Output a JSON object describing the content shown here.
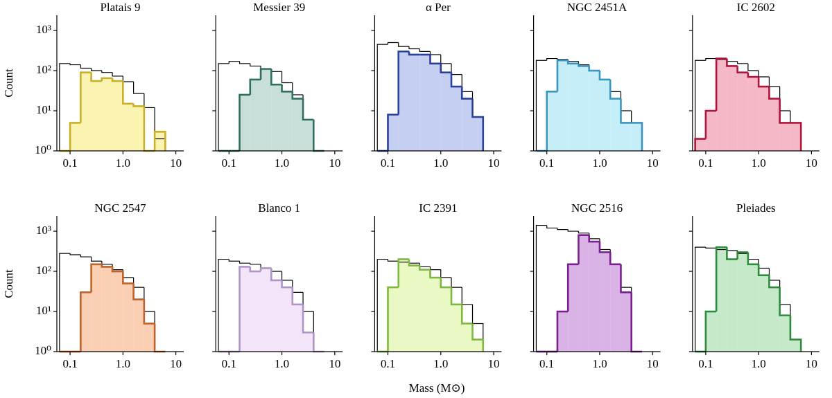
{
  "chart_data": [
    {
      "type": "histogram",
      "title": "Platais 9",
      "ylabel": "Count",
      "xscale": "log",
      "yscale": "log",
      "bins": [
        0.0631,
        0.1,
        0.1585,
        0.2512,
        0.3981,
        0.631,
        1.0,
        1.585,
        2.512,
        3.981,
        6.31
      ],
      "xlim": [
        0.0562,
        14.1
      ],
      "ylim": [
        1,
        2400
      ],
      "xticks": [
        0.1,
        {
          "value": 1,
          "label": "1.0"
        },
        10
      ],
      "yticks": [
        {
          "value": 1,
          "label": "10⁰"
        },
        {
          "value": 10,
          "label": "10¹"
        },
        {
          "value": 100,
          "label": "10²"
        },
        {
          "value": 1000,
          "label": "10³"
        }
      ],
      "series": [
        {
          "color": "#000000",
          "values": [
            150,
            140,
            115,
            100,
            90,
            73,
            53,
            27,
            12,
            2
          ]
        },
        {
          "color": "#c8b028",
          "fill": "#fbf3b0",
          "values": [
            0,
            5,
            90,
            55,
            65,
            55,
            15,
            13,
            1,
            3
          ]
        }
      ]
    },
    {
      "type": "histogram",
      "title": "Messier 39",
      "xscale": "log",
      "yscale": "log",
      "bins": [
        0.0631,
        0.1,
        0.1585,
        0.2512,
        0.3981,
        0.631,
        1.0,
        1.585,
        2.512,
        3.981,
        6.31
      ],
      "xlim": [
        0.0562,
        14.1
      ],
      "ylim": [
        1,
        2400
      ],
      "xticks": [
        0.1,
        {
          "value": 1,
          "label": "1.0"
        },
        10
      ],
      "yticks": [
        {
          "value": 1,
          "label": "10⁰"
        },
        {
          "value": 10,
          "label": "10¹"
        },
        {
          "value": 100,
          "label": "10²"
        },
        {
          "value": 1000,
          "label": "10³"
        }
      ],
      "series": [
        {
          "color": "#000000",
          "values": [
            150,
            170,
            150,
            130,
            110,
            95,
            50,
            25,
            6,
            0
          ]
        },
        {
          "color": "#2f6f60",
          "fill": "#c8ded9",
          "values": [
            0,
            0,
            25,
            60,
            110,
            45,
            30,
            20,
            6,
            0
          ]
        }
      ]
    },
    {
      "type": "histogram",
      "title": "α Per",
      "xscale": "log",
      "yscale": "log",
      "bins": [
        0.0631,
        0.1,
        0.1585,
        0.2512,
        0.3981,
        0.631,
        1.0,
        1.585,
        2.512,
        3.981,
        6.31
      ],
      "xlim": [
        0.0562,
        14.1
      ],
      "ylim": [
        1,
        2400
      ],
      "xticks": [
        0.1,
        {
          "value": 1,
          "label": "1.0"
        },
        10
      ],
      "yticks": [
        {
          "value": 1,
          "label": "10⁰"
        },
        {
          "value": 10,
          "label": "10¹"
        },
        {
          "value": 100,
          "label": "10²"
        },
        {
          "value": 1000,
          "label": "10³"
        }
      ],
      "series": [
        {
          "color": "#000000",
          "values": [
            450,
            500,
            400,
            350,
            300,
            250,
            150,
            80,
            30,
            7
          ]
        },
        {
          "color": "#2b3f9e",
          "fill": "#c5cff2",
          "values": [
            0,
            8,
            300,
            250,
            250,
            150,
            90,
            40,
            20,
            7
          ]
        }
      ]
    },
    {
      "type": "histogram",
      "title": "NGC 2451A",
      "xscale": "log",
      "yscale": "log",
      "bins": [
        0.0631,
        0.1,
        0.1585,
        0.2512,
        0.3981,
        0.631,
        1.0,
        1.585,
        2.512,
        3.981,
        6.31
      ],
      "xlim": [
        0.0562,
        14.1
      ],
      "ylim": [
        1,
        2400
      ],
      "xticks": [
        0.1,
        {
          "value": 1,
          "label": "1.0"
        },
        10
      ],
      "yticks": [
        {
          "value": 1,
          "label": "10⁰"
        },
        {
          "value": 10,
          "label": "10¹"
        },
        {
          "value": 100,
          "label": "10²"
        },
        {
          "value": 1000,
          "label": "10³"
        }
      ],
      "series": [
        {
          "color": "#000000",
          "values": [
            180,
            200,
            190,
            170,
            140,
            100,
            60,
            30,
            10,
            5
          ]
        },
        {
          "color": "#3a95c0",
          "fill": "#c5eef8",
          "values": [
            0,
            30,
            180,
            150,
            130,
            100,
            60,
            20,
            5,
            5
          ]
        }
      ]
    },
    {
      "type": "histogram",
      "title": "IC 2602",
      "xscale": "log",
      "yscale": "log",
      "bins": [
        0.0631,
        0.1,
        0.1585,
        0.2512,
        0.3981,
        0.631,
        1.0,
        1.585,
        2.512,
        3.981,
        6.31
      ],
      "xlim": [
        0.0562,
        14.1
      ],
      "ylim": [
        1,
        2400
      ],
      "xticks": [
        0.1,
        {
          "value": 1,
          "label": "1.0"
        },
        10
      ],
      "yticks": [
        {
          "value": 1,
          "label": "10⁰"
        },
        {
          "value": 10,
          "label": "10¹"
        },
        {
          "value": 100,
          "label": "10²"
        },
        {
          "value": 1000,
          "label": "10³"
        }
      ],
      "series": [
        {
          "color": "#000000",
          "values": [
            180,
            200,
            190,
            170,
            150,
            100,
            70,
            40,
            10,
            5
          ]
        },
        {
          "color": "#b0143a",
          "fill": "#f4b8c6",
          "values": [
            2,
            10,
            200,
            130,
            90,
            70,
            40,
            20,
            5,
            5
          ]
        }
      ]
    },
    {
      "type": "histogram",
      "title": "NGC 2547",
      "ylabel": "Count",
      "xscale": "log",
      "yscale": "log",
      "bins": [
        0.0631,
        0.1,
        0.1585,
        0.2512,
        0.3981,
        0.631,
        1.0,
        1.585,
        2.512,
        3.981,
        6.31
      ],
      "xlim": [
        0.0562,
        14.1
      ],
      "ylim": [
        1,
        2400
      ],
      "xticks": [
        0.1,
        {
          "value": 1,
          "label": "1.0"
        },
        10
      ],
      "yticks": [
        {
          "value": 1,
          "label": "10⁰"
        },
        {
          "value": 10,
          "label": "10¹"
        },
        {
          "value": 100,
          "label": "10²"
        },
        {
          "value": 1000,
          "label": "10³"
        }
      ],
      "series": [
        {
          "color": "#000000",
          "values": [
            280,
            260,
            230,
            180,
            150,
            110,
            70,
            40,
            10,
            1
          ]
        },
        {
          "color": "#c0622a",
          "fill": "#fbcfb4",
          "values": [
            0,
            0,
            30,
            150,
            130,
            100,
            50,
            20,
            5,
            1
          ]
        }
      ]
    },
    {
      "type": "histogram",
      "title": "Blanco 1",
      "xscale": "log",
      "yscale": "log",
      "bins": [
        0.0631,
        0.1,
        0.1585,
        0.2512,
        0.3981,
        0.631,
        1.0,
        1.585,
        2.512,
        3.981,
        6.31
      ],
      "xlim": [
        0.0562,
        14.1
      ],
      "ylim": [
        1,
        2400
      ],
      "xticks": [
        0.1,
        {
          "value": 1,
          "label": "1.0"
        },
        10
      ],
      "yticks": [
        {
          "value": 1,
          "label": "10⁰"
        },
        {
          "value": 10,
          "label": "10¹"
        },
        {
          "value": 100,
          "label": "10²"
        },
        {
          "value": 1000,
          "label": "10³"
        }
      ],
      "series": [
        {
          "color": "#000000",
          "values": [
            200,
            180,
            160,
            150,
            120,
            100,
            60,
            30,
            10,
            0
          ]
        },
        {
          "color": "#b094c8",
          "fill": "#f2e4f9",
          "values": [
            0,
            0,
            130,
            100,
            120,
            60,
            40,
            15,
            3,
            0
          ]
        }
      ]
    },
    {
      "type": "histogram",
      "title": "IC 2391",
      "xlabel": "Mass (M⊙)",
      "xscale": "log",
      "yscale": "log",
      "bins": [
        0.0631,
        0.1,
        0.1585,
        0.2512,
        0.3981,
        0.631,
        1.0,
        1.585,
        2.512,
        3.981,
        6.31
      ],
      "xlim": [
        0.0562,
        14.1
      ],
      "ylim": [
        1,
        2400
      ],
      "xticks": [
        0.1,
        {
          "value": 1,
          "label": "1.0"
        },
        10
      ],
      "yticks": [
        {
          "value": 1,
          "label": "10⁰"
        },
        {
          "value": 10,
          "label": "10¹"
        },
        {
          "value": 100,
          "label": "10²"
        },
        {
          "value": 1000,
          "label": "10³"
        }
      ],
      "series": [
        {
          "color": "#000000",
          "values": [
            200,
            180,
            170,
            160,
            130,
            110,
            70,
            40,
            15,
            5
          ]
        },
        {
          "color": "#7fb83e",
          "fill": "#eaf8c4",
          "values": [
            0,
            40,
            200,
            140,
            110,
            70,
            40,
            15,
            5,
            2
          ]
        }
      ]
    },
    {
      "type": "histogram",
      "title": "NGC 2516",
      "xscale": "log",
      "yscale": "log",
      "bins": [
        0.0631,
        0.1,
        0.1585,
        0.2512,
        0.3981,
        0.631,
        1.0,
        1.585,
        2.512,
        3.981,
        6.31
      ],
      "xlim": [
        0.0562,
        14.1
      ],
      "ylim": [
        1,
        2400
      ],
      "xticks": [
        0.1,
        {
          "value": 1,
          "label": "1.0"
        },
        10
      ],
      "yticks": [
        {
          "value": 1,
          "label": "10⁰"
        },
        {
          "value": 10,
          "label": "10¹"
        },
        {
          "value": 100,
          "label": "10²"
        },
        {
          "value": 1000,
          "label": "10³"
        }
      ],
      "series": [
        {
          "color": "#000000",
          "values": [
            1400,
            1200,
            1100,
            1000,
            900,
            650,
            350,
            150,
            40,
            0
          ]
        },
        {
          "color": "#7a1f8f",
          "fill": "#d9b3e6",
          "values": [
            0,
            0,
            10,
            150,
            800,
            550,
            300,
            150,
            30,
            0
          ]
        }
      ]
    },
    {
      "type": "histogram",
      "title": "Pleiades",
      "xscale": "log",
      "yscale": "log",
      "bins": [
        0.0631,
        0.1,
        0.1585,
        0.2512,
        0.3981,
        0.631,
        1.0,
        1.585,
        2.512,
        3.981,
        6.31
      ],
      "xlim": [
        0.0562,
        14.1
      ],
      "ylim": [
        1,
        2400
      ],
      "xticks": [
        0.1,
        {
          "value": 1,
          "label": "1.0"
        },
        10
      ],
      "yticks": [
        {
          "value": 1,
          "label": "10⁰"
        },
        {
          "value": 10,
          "label": "10¹"
        },
        {
          "value": 100,
          "label": "10²"
        },
        {
          "value": 1000,
          "label": "10³"
        }
      ],
      "series": [
        {
          "color": "#000000",
          "values": [
            400,
            380,
            350,
            330,
            280,
            200,
            120,
            60,
            15,
            2
          ]
        },
        {
          "color": "#2e8b3e",
          "fill": "#c6e9c9",
          "values": [
            0,
            10,
            400,
            200,
            300,
            150,
            80,
            40,
            8,
            2
          ]
        }
      ]
    }
  ]
}
